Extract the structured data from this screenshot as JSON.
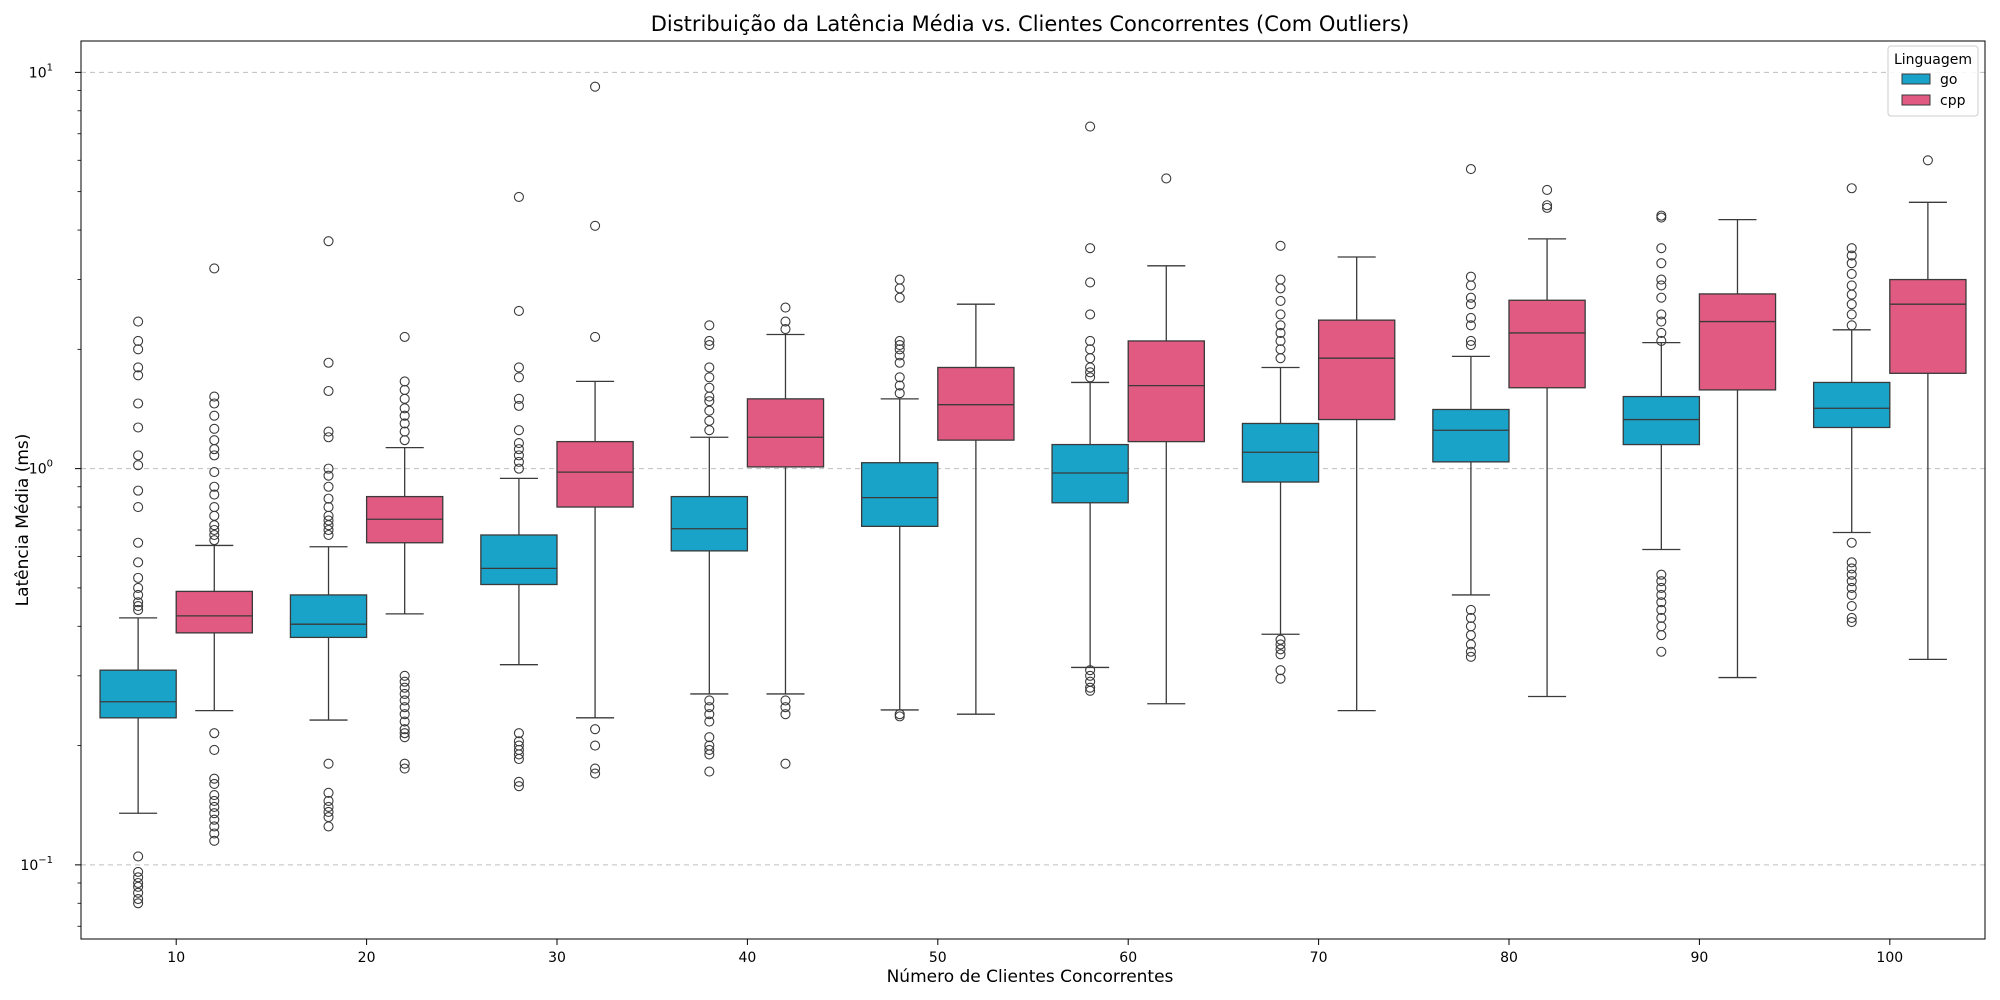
{
  "chart_data": {
    "type": "box",
    "title": "Distribuição da Latência Média vs. Clientes Concorrentes (Com Outliers)",
    "xlabel": "Número de Clientes Concorrentes",
    "ylabel": "Latência Média (ms)",
    "yscale": "log",
    "ylim": [
      0.065,
      12
    ],
    "yticks": [
      {
        "value": 0.1,
        "base": "10",
        "exp": "−1"
      },
      {
        "value": 1,
        "base": "10",
        "exp": "0"
      },
      {
        "value": 10,
        "base": "10",
        "exp": "1"
      }
    ],
    "grid": "y-dashed",
    "categories": [
      "10",
      "20",
      "30",
      "40",
      "50",
      "60",
      "70",
      "80",
      "90",
      "100"
    ],
    "legend": {
      "title": "Linguagem",
      "position": "top-right"
    },
    "series": [
      {
        "name": "go",
        "color": "#1aa3c9",
        "boxes": [
          {
            "whislo": 0.135,
            "q1": 0.235,
            "med": 0.258,
            "q3": 0.31,
            "whishi": 0.42,
            "fliers": [
              0.08,
              0.082,
              0.085,
              0.088,
              0.09,
              0.093,
              0.096,
              0.105,
              0.44,
              0.45,
              0.46,
              0.48,
              0.5,
              0.53,
              0.58,
              0.65,
              0.8,
              0.88,
              1.02,
              1.08,
              1.27,
              1.46,
              1.72,
              1.8,
              2.0,
              2.1,
              2.35
            ]
          },
          {
            "whislo": 0.232,
            "q1": 0.375,
            "med": 0.405,
            "q3": 0.48,
            "whishi": 0.635,
            "fliers": [
              0.125,
              0.132,
              0.136,
              0.14,
              0.145,
              0.152,
              0.18,
              0.68,
              0.7,
              0.72,
              0.74,
              0.76,
              0.8,
              0.84,
              0.9,
              0.96,
              1.0,
              1.2,
              1.24,
              1.57,
              1.85,
              3.75
            ]
          },
          {
            "whislo": 0.32,
            "q1": 0.51,
            "med": 0.56,
            "q3": 0.68,
            "whishi": 0.945,
            "fliers": [
              0.158,
              0.162,
              0.185,
              0.19,
              0.195,
              0.2,
              0.205,
              0.215,
              1.0,
              1.04,
              1.08,
              1.12,
              1.16,
              1.25,
              1.44,
              1.5,
              1.7,
              1.8,
              2.5,
              4.85
            ]
          },
          {
            "whislo": 0.27,
            "q1": 0.62,
            "med": 0.705,
            "q3": 0.85,
            "whishi": 1.2,
            "fliers": [
              0.172,
              0.19,
              0.195,
              0.2,
              0.21,
              0.23,
              0.24,
              0.25,
              0.26,
              1.25,
              1.32,
              1.4,
              1.48,
              1.52,
              1.6,
              1.7,
              1.8,
              2.05,
              2.1,
              2.3
            ]
          },
          {
            "whislo": 0.246,
            "q1": 0.715,
            "med": 0.845,
            "q3": 1.035,
            "whishi": 1.5,
            "fliers": [
              0.237,
              0.24,
              1.55,
              1.62,
              1.7,
              1.85,
              1.93,
              2.0,
              2.05,
              2.1,
              2.7,
              2.85,
              3.0
            ]
          },
          {
            "whislo": 0.315,
            "q1": 0.82,
            "med": 0.975,
            "q3": 1.15,
            "whishi": 1.65,
            "fliers": [
              0.275,
              0.28,
              0.29,
              0.3,
              0.31,
              1.7,
              1.75,
              1.8,
              1.9,
              2.0,
              2.1,
              2.45,
              2.95,
              3.6,
              7.3
            ]
          },
          {
            "whislo": 0.382,
            "q1": 0.925,
            "med": 1.1,
            "q3": 1.3,
            "whishi": 1.8,
            "fliers": [
              0.295,
              0.31,
              0.34,
              0.35,
              0.36,
              0.37,
              1.9,
              2.0,
              2.1,
              2.2,
              2.3,
              2.45,
              2.65,
              2.85,
              3.0,
              3.65
            ]
          },
          {
            "whislo": 0.48,
            "q1": 1.04,
            "med": 1.25,
            "q3": 1.41,
            "whishi": 1.92,
            "fliers": [
              0.335,
              0.345,
              0.36,
              0.38,
              0.4,
              0.42,
              0.44,
              2.05,
              2.1,
              2.3,
              2.4,
              2.6,
              2.7,
              2.9,
              3.05,
              5.7
            ]
          },
          {
            "whislo": 0.625,
            "q1": 1.15,
            "med": 1.33,
            "q3": 1.52,
            "whishi": 2.08,
            "fliers": [
              0.345,
              0.38,
              0.4,
              0.42,
              0.44,
              0.46,
              0.48,
              0.5,
              0.52,
              0.54,
              2.1,
              2.2,
              2.35,
              2.45,
              2.7,
              2.9,
              3.0,
              3.3,
              3.6,
              4.3,
              4.35
            ]
          },
          {
            "whislo": 0.69,
            "q1": 1.27,
            "med": 1.42,
            "q3": 1.65,
            "whishi": 2.24,
            "fliers": [
              0.41,
              0.42,
              0.45,
              0.48,
              0.5,
              0.52,
              0.54,
              0.56,
              0.58,
              0.65,
              2.3,
              2.45,
              2.6,
              2.75,
              2.9,
              3.1,
              3.3,
              3.45,
              3.6,
              5.1
            ]
          }
        ]
      },
      {
        "name": "cpp",
        "color": "#e05a82",
        "boxes": [
          {
            "whislo": 0.245,
            "q1": 0.385,
            "med": 0.425,
            "q3": 0.49,
            "whishi": 0.64,
            "fliers": [
              0.115,
              0.12,
              0.125,
              0.13,
              0.135,
              0.14,
              0.145,
              0.15,
              0.16,
              0.165,
              0.195,
              0.215,
              0.66,
              0.68,
              0.7,
              0.72,
              0.76,
              0.8,
              0.86,
              0.9,
              0.98,
              1.08,
              1.12,
              1.18,
              1.26,
              1.36,
              1.46,
              1.52,
              3.2
            ]
          },
          {
            "whislo": 0.43,
            "q1": 0.65,
            "med": 0.745,
            "q3": 0.85,
            "whishi": 1.13,
            "fliers": [
              0.175,
              0.18,
              0.21,
              0.215,
              0.22,
              0.23,
              0.24,
              0.25,
              0.26,
              0.27,
              0.28,
              0.29,
              0.3,
              1.18,
              1.24,
              1.3,
              1.36,
              1.42,
              1.5,
              1.58,
              1.66,
              2.15
            ]
          },
          {
            "whislo": 0.235,
            "q1": 0.8,
            "med": 0.98,
            "q3": 1.17,
            "whishi": 1.66,
            "fliers": [
              0.17,
              0.175,
              0.2,
              0.22,
              2.15,
              4.1,
              9.2
            ]
          },
          {
            "whislo": 0.27,
            "q1": 1.01,
            "med": 1.2,
            "q3": 1.5,
            "whishi": 2.18,
            "fliers": [
              0.18,
              0.24,
              0.25,
              0.26,
              2.25,
              2.35,
              2.55
            ]
          },
          {
            "whislo": 0.24,
            "q1": 1.18,
            "med": 1.45,
            "q3": 1.8,
            "whishi": 2.6,
            "fliers": []
          },
          {
            "whislo": 0.255,
            "q1": 1.17,
            "med": 1.62,
            "q3": 2.1,
            "whishi": 3.25,
            "fliers": [
              5.4
            ]
          },
          {
            "whislo": 0.245,
            "q1": 1.33,
            "med": 1.9,
            "q3": 2.37,
            "whishi": 3.42,
            "fliers": []
          },
          {
            "whislo": 0.266,
            "q1": 1.6,
            "med": 2.2,
            "q3": 2.66,
            "whishi": 3.8,
            "fliers": [
              4.55,
              4.62,
              5.05
            ]
          },
          {
            "whislo": 0.297,
            "q1": 1.58,
            "med": 2.35,
            "q3": 2.76,
            "whishi": 4.25,
            "fliers": []
          },
          {
            "whislo": 0.33,
            "q1": 1.74,
            "med": 2.6,
            "q3": 3.0,
            "whishi": 4.7,
            "fliers": [
              6.0
            ]
          }
        ]
      }
    ]
  }
}
